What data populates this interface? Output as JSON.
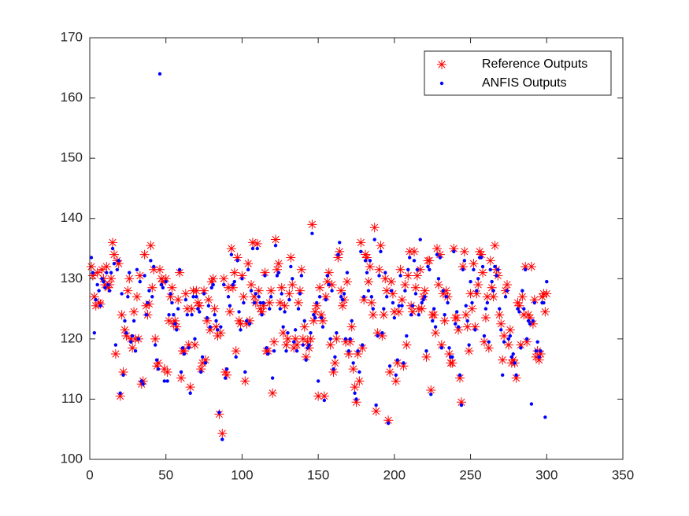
{
  "chart_data": {
    "type": "scatter",
    "xlim": [
      0,
      350
    ],
    "xticks": [
      0,
      50,
      100,
      150,
      200,
      250,
      300,
      350
    ],
    "ylim": [
      100,
      170
    ],
    "yticks": [
      100,
      110,
      120,
      130,
      140,
      150,
      160,
      170
    ],
    "legend": "northeast",
    "x": [
      1,
      2,
      3,
      4,
      5,
      6,
      7,
      8,
      9,
      10,
      11,
      12,
      13,
      14,
      15,
      16,
      17,
      18,
      19,
      20,
      21,
      22,
      23,
      24,
      25,
      26,
      27,
      28,
      29,
      30,
      31,
      32,
      33,
      34,
      35,
      36,
      37,
      38,
      39,
      40,
      41,
      42,
      43,
      44,
      45,
      46,
      47,
      48,
      49,
      50,
      51,
      52,
      53,
      54,
      55,
      56,
      57,
      58,
      59,
      60,
      61,
      62,
      63,
      64,
      65,
      66,
      67,
      68,
      69,
      70,
      71,
      72,
      73,
      74,
      75,
      76,
      77,
      78,
      79,
      80,
      81,
      82,
      83,
      84,
      85,
      86,
      87,
      88,
      89,
      90,
      91,
      92,
      93,
      94,
      95,
      96,
      97,
      98,
      99,
      100,
      101,
      102,
      103,
      104,
      105,
      106,
      107,
      108,
      109,
      110,
      111,
      112,
      113,
      114,
      115,
      116,
      117,
      118,
      119,
      120,
      121,
      122,
      123,
      124,
      125,
      126,
      127,
      128,
      129,
      130,
      131,
      132,
      133,
      134,
      135,
      136,
      137,
      138,
      139,
      140,
      141,
      142,
      143,
      144,
      145,
      146,
      147,
      148,
      149,
      150,
      151,
      152,
      153,
      154,
      155,
      156,
      157,
      158,
      159,
      160,
      161,
      162,
      163,
      164,
      165,
      166,
      167,
      168,
      169,
      170,
      171,
      172,
      173,
      174,
      175,
      176,
      177,
      178,
      179,
      180,
      181,
      182,
      183,
      184,
      185,
      186,
      187,
      188,
      189,
      190,
      191,
      192,
      193,
      194,
      195,
      196,
      197,
      198,
      199,
      200,
      201,
      202,
      203,
      204,
      205,
      206,
      207,
      208,
      209,
      210,
      211,
      212,
      213,
      214,
      215,
      216,
      217,
      218,
      219,
      220,
      221,
      222,
      223,
      224,
      225,
      226,
      227,
      228,
      229,
      230,
      231,
      232,
      233,
      234,
      235,
      236,
      237,
      238,
      239,
      240,
      241,
      242,
      243,
      244,
      245,
      246,
      247,
      248,
      249,
      250,
      251,
      252,
      253,
      254,
      255,
      256,
      257,
      258,
      259,
      260,
      261,
      262,
      263,
      264,
      265,
      266,
      267,
      268,
      269,
      270,
      271,
      272,
      273,
      274,
      275,
      276,
      277,
      278,
      279,
      280,
      281,
      282,
      283,
      284,
      285,
      286,
      287,
      288,
      289,
      290,
      291,
      292,
      293,
      294,
      295,
      296,
      297,
      298,
      299,
      300
    ],
    "series": [
      {
        "name": "Reference Outputs",
        "color": "#ff0000",
        "marker": "asterisk",
        "values": [
          132,
          130.5,
          127,
          125.5,
          131,
          126,
          125.8,
          131.5,
          130,
          129,
          132,
          128.5,
          129,
          130,
          136,
          134,
          117.5,
          133,
          132.5,
          110.5,
          124,
          114.5,
          121.5,
          120.5,
          128,
          130,
          120,
          118.5,
          124.5,
          120,
          127,
          120,
          130.5,
          112.5,
          113,
          134,
          125.5,
          124,
          125.8,
          135.5,
          128.5,
          131.5,
          120,
          115.5,
          116,
          131.5,
          130,
          129.5,
          115,
          130,
          114.5,
          123,
          127,
          128.5,
          122.5,
          123,
          122,
          126.5,
          131,
          113.5,
          118,
          118,
          127.5,
          125,
          119,
          112,
          125,
          128,
          119,
          128,
          126,
          125.5,
          115,
          116,
          128,
          116.5,
          123,
          126.5,
          121.5,
          129.5,
          130,
          125,
          122,
          120.5,
          107.5,
          121,
          104.3,
          130,
          114.5,
          114,
          128.5,
          124.5,
          135,
          128.5,
          131,
          118,
          133.5,
          123,
          122.5,
          130.5,
          127,
          113,
          122.5,
          132.5,
          123,
          129,
          136,
          127,
          126,
          135.8,
          128,
          125,
          124.5,
          125.5,
          131,
          118,
          118,
          126,
          128,
          111,
          119.5,
          136.5,
          131.5,
          132.5,
          126,
          128.5,
          121,
          125.5,
          119,
          120,
          127.5,
          133.5,
          129,
          118.5,
          120,
          119,
          126,
          128,
          131.5,
          120,
          122,
          117,
          119.5,
          118.5,
          120,
          139,
          123,
          124.5,
          125.5,
          110.5,
          128.5,
          124,
          123,
          110.5,
          127,
          129.5,
          131,
          119,
          129,
          114.5,
          116,
          120,
          133.5,
          134.5,
          128,
          125.5,
          126.5,
          119.5,
          129.5,
          117.5,
          119.5,
          122,
          115,
          112,
          109.5,
          117.5,
          113,
          136,
          118.5,
          126.5,
          134,
          133.5,
          129.5,
          132,
          126,
          124,
          138.5,
          108,
          121,
          131.5,
          135.5,
          120.5,
          124,
          130,
          128,
          106.5,
          114.5,
          129.5,
          127.5,
          124.5,
          113,
          116,
          124.5,
          131.5,
          126.5,
          115.5,
          129,
          119,
          130.5,
          134.5,
          125.5,
          124.5,
          134.5,
          128.5,
          130.5,
          125,
          131.5,
          125,
          127,
          128,
          117,
          133,
          133,
          111.5,
          124,
          124,
          121,
          135,
          129,
          134,
          119,
          127.5,
          123,
          128,
          127,
          117.5,
          116,
          116,
          135,
          123.5,
          123.5,
          121.5,
          113.5,
          109.5,
          132,
          134.5,
          124,
          122,
          118,
          127.5,
          125,
          132.5,
          122,
          127.5,
          129,
          134.5,
          134,
          131,
          119.5,
          123.5,
          127,
          118.5,
          133,
          128.5,
          127,
          135.5,
          131.5,
          130.5,
          124,
          122.5,
          116.5,
          120.5,
          128,
          129,
          119,
          121.5,
          116,
          116.5,
          116,
          113.5,
          126,
          125.5,
          119,
          127,
          124,
          132,
          119.5,
          124,
          123.5,
          132,
          122.5,
          126.5,
          117,
          118,
          116.5,
          117.5,
          127,
          127.5,
          124.5,
          127.5
        ]
      },
      {
        "name": "ANFIS Outputs",
        "color": "#0000ff",
        "marker": "dot",
        "values": [
          133.5,
          131,
          121,
          126.5,
          129,
          128,
          125.5,
          130,
          129.5,
          128.5,
          131,
          129,
          128,
          131,
          135,
          132.5,
          119,
          131.5,
          133,
          111,
          127.5,
          114,
          123,
          121,
          127,
          131,
          119.5,
          120.5,
          123,
          118,
          131.5,
          120,
          129.5,
          113,
          112.5,
          130.5,
          124,
          126,
          128,
          133,
          127,
          132,
          119,
          116.5,
          115,
          164,
          129,
          128.5,
          113,
          129.5,
          113,
          124,
          127.5,
          126,
          124,
          122.5,
          121.5,
          125,
          131.5,
          114.5,
          118.5,
          117.5,
          126.5,
          124,
          118.5,
          111,
          124,
          127,
          120,
          127,
          125,
          124.5,
          114.5,
          117,
          127.5,
          116,
          123.5,
          125.5,
          122,
          128.5,
          129,
          124,
          123,
          121.5,
          107.8,
          122,
          103.3,
          129,
          113.5,
          115,
          127,
          125.5,
          134,
          129,
          129.5,
          117,
          133,
          124.5,
          121.5,
          130,
          126,
          114.5,
          123,
          131.5,
          122.5,
          128,
          135,
          126,
          127.5,
          135,
          127,
          126,
          124,
          126,
          130.5,
          118.5,
          117.5,
          125,
          127,
          113.5,
          118,
          135.5,
          130.5,
          131,
          125,
          127.5,
          122,
          124.5,
          118,
          121,
          126.5,
          132,
          130,
          119.5,
          121.5,
          118,
          125,
          127.5,
          130.5,
          119,
          123,
          116.5,
          118.5,
          119,
          121,
          137.5,
          124,
          123.5,
          126,
          113,
          127,
          123.5,
          122,
          109.8,
          126.5,
          130.5,
          129,
          120,
          128,
          115,
          117,
          121,
          134,
          136,
          127,
          126.5,
          127.5,
          120,
          131,
          118,
          120,
          123,
          116,
          111,
          110,
          118,
          114.5,
          134.5,
          119,
          127,
          133,
          131,
          128,
          133,
          127,
          125,
          136.5,
          109,
          120.5,
          130.5,
          134.5,
          121,
          125,
          131,
          127,
          106,
          115.5,
          128,
          126,
          123.5,
          114,
          116.5,
          125.5,
          130.5,
          125.5,
          116,
          128,
          120.5,
          131.5,
          133.5,
          124,
          125.5,
          133,
          127.5,
          131.5,
          124,
          136.5,
          126,
          126.5,
          127,
          118,
          132,
          131.5,
          110.8,
          123,
          125,
          122,
          134,
          130,
          133.5,
          118.5,
          128,
          124,
          127,
          126,
          118.5,
          117,
          117,
          134.5,
          122.5,
          124.5,
          122,
          114,
          109,
          131.5,
          133,
          125.5,
          123,
          119,
          129.5,
          126,
          131.5,
          121.5,
          128,
          130,
          133.5,
          133.5,
          132,
          120.5,
          125,
          126,
          119.5,
          131.5,
          129.5,
          128,
          132,
          130.5,
          131.5,
          125,
          121.5,
          114,
          119.5,
          127,
          128,
          120,
          120.5,
          117,
          117.5,
          116,
          114,
          125,
          124.5,
          118.5,
          128,
          125,
          131.5,
          120,
          123,
          122.5,
          109.2,
          123,
          126,
          118,
          119.5,
          117,
          118,
          126,
          126,
          107,
          129.5
        ]
      }
    ]
  }
}
